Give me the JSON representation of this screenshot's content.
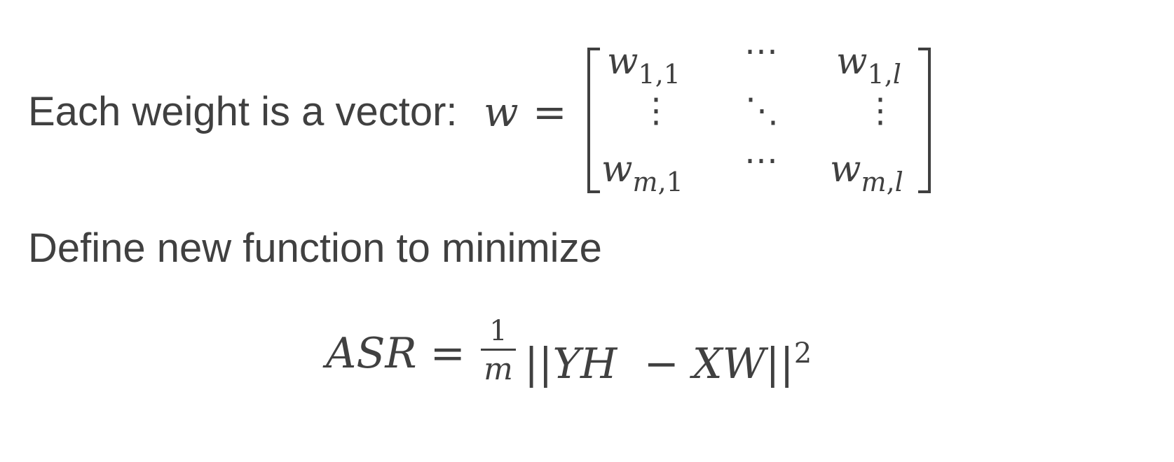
{
  "line1": {
    "text": "Each weight is a vector:",
    "var": "w",
    "equals": "="
  },
  "matrix": {
    "r1c1_base": "w",
    "r1c1_sub": "1,1",
    "r1c2": "⋯",
    "r1c3_base": "w",
    "r1c3_sub_num": "1,",
    "r1c3_sub_var": "l",
    "r2c1": "⋮",
    "r2c2": "⋱",
    "r2c3": "⋮",
    "r3c1_base": "w",
    "r3c1_sub_var": "m",
    "r3c1_sub_num": ",1",
    "r3c2": "⋯",
    "r3c3_base": "w",
    "r3c3_sub_var1": "m",
    "r3c3_sub_comma": ",",
    "r3c3_sub_var2": "l"
  },
  "line2": {
    "text": "Define new function to minimize"
  },
  "formula": {
    "lhs": "ASR =",
    "frac_num": "1",
    "frac_den": "m",
    "norm_open": "||",
    "term1": "YH",
    "minus": "−",
    "term2": "XW",
    "norm_close": "||",
    "power": "2"
  }
}
